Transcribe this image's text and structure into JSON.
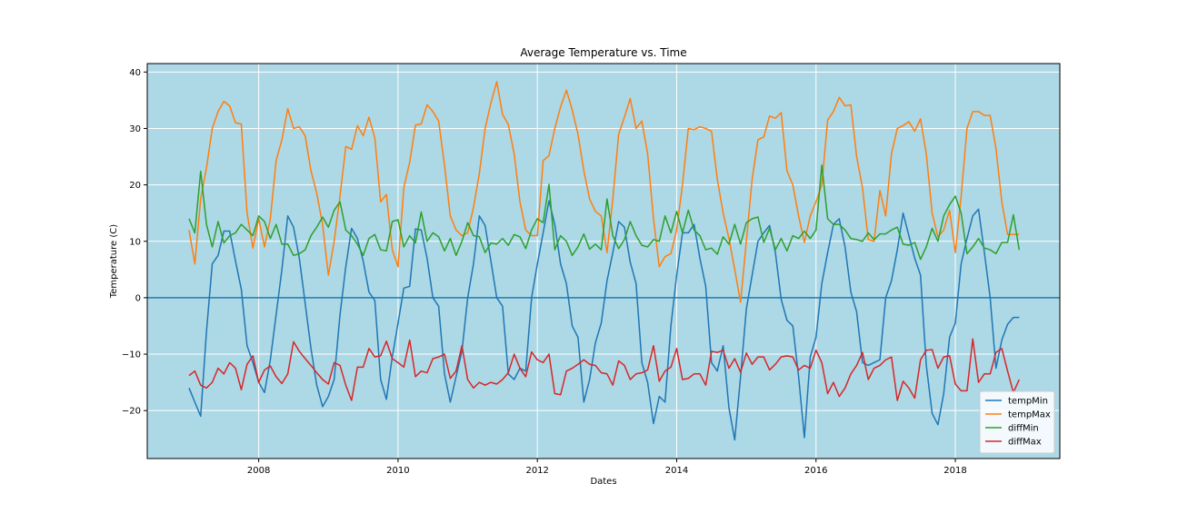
{
  "chart_data": {
    "type": "line",
    "title": "Average Temperature vs. Time",
    "xlabel": "Dates",
    "ylabel": "Temperature (C)",
    "xlim": [
      2006.4,
      2019.5
    ],
    "ylim": [
      -28.5,
      41.5
    ],
    "xticks": [
      2008,
      2010,
      2012,
      2014,
      2016,
      2018
    ],
    "yticks": [
      -20,
      -10,
      0,
      10,
      20,
      30,
      40
    ],
    "grid": true,
    "legend_position": "lower-right",
    "background_color": "#add8e6",
    "hline": {
      "y": 0,
      "color": "#1f77b4"
    },
    "x": [
      2007.0,
      2007.083,
      2007.167,
      2007.25,
      2007.333,
      2007.417,
      2007.5,
      2007.583,
      2007.667,
      2007.75,
      2007.833,
      2007.917,
      2008.0,
      2008.083,
      2008.167,
      2008.25,
      2008.333,
      2008.417,
      2008.5,
      2008.583,
      2008.667,
      2008.75,
      2008.833,
      2008.917,
      2009.0,
      2009.083,
      2009.167,
      2009.25,
      2009.333,
      2009.417,
      2009.5,
      2009.583,
      2009.667,
      2009.75,
      2009.833,
      2009.917,
      2010.0,
      2010.083,
      2010.167,
      2010.25,
      2010.333,
      2010.417,
      2010.5,
      2010.583,
      2010.667,
      2010.75,
      2010.833,
      2010.917,
      2011.0,
      2011.083,
      2011.167,
      2011.25,
      2011.333,
      2011.417,
      2011.5,
      2011.583,
      2011.667,
      2011.75,
      2011.833,
      2011.917,
      2012.0,
      2012.083,
      2012.167,
      2012.25,
      2012.333,
      2012.417,
      2012.5,
      2012.583,
      2012.667,
      2012.75,
      2012.833,
      2012.917,
      2013.0,
      2013.083,
      2013.167,
      2013.25,
      2013.333,
      2013.417,
      2013.5,
      2013.583,
      2013.667,
      2013.75,
      2013.833,
      2013.917,
      2014.0,
      2014.083,
      2014.167,
      2014.25,
      2014.333,
      2014.417,
      2014.5,
      2014.583,
      2014.667,
      2014.75,
      2014.833,
      2014.917,
      2015.0,
      2015.083,
      2015.167,
      2015.25,
      2015.333,
      2015.417,
      2015.5,
      2015.583,
      2015.667,
      2015.75,
      2015.833,
      2015.917,
      2016.0,
      2016.083,
      2016.167,
      2016.25,
      2016.333,
      2016.417,
      2016.5,
      2016.583,
      2016.667,
      2016.75,
      2016.833,
      2016.917,
      2017.0,
      2017.083,
      2017.167,
      2017.25,
      2017.333,
      2017.417,
      2017.5,
      2017.583,
      2017.667,
      2017.75,
      2017.833,
      2017.917,
      2018.0,
      2018.083,
      2018.167,
      2018.25,
      2018.333,
      2018.417,
      2018.5,
      2018.583,
      2018.667,
      2018.75,
      2018.833,
      2018.917
    ],
    "series": [
      {
        "name": "tempMin",
        "color": "#1f77b4",
        "values": [
          -16,
          -18.5,
          -21,
          -6,
          6,
          7.5,
          11.8,
          11.8,
          6.5,
          1.5,
          -8.5,
          -11.5,
          -15,
          -16.8,
          -11,
          -3,
          5,
          14.5,
          12.5,
          7,
          -1,
          -9,
          -15.5,
          -19.3,
          -17.5,
          -14.5,
          -3,
          5.5,
          12.3,
          10.5,
          6.5,
          1,
          -0.5,
          -14.5,
          -18,
          -10.5,
          -4.5,
          1.7,
          2,
          12.2,
          12,
          7,
          0,
          -1.5,
          -13.5,
          -18.5,
          -14,
          -9.5,
          0,
          6,
          14.5,
          12.8,
          6.5,
          0,
          -1.5,
          -13.5,
          -14.5,
          -12.5,
          -13,
          0,
          6,
          11.5,
          17.2,
          13,
          6,
          2.5,
          -5,
          -7,
          -18.5,
          -14.5,
          -8,
          -4.5,
          3,
          8,
          13.5,
          12.5,
          6.3,
          2.5,
          -11.5,
          -15,
          -22.3,
          -17.5,
          -18.5,
          -5,
          4,
          11.5,
          11.5,
          13,
          7,
          2,
          -11.5,
          -13,
          -8.5,
          -19.5,
          -25.2,
          -14,
          -2,
          4,
          10,
          11.5,
          12.8,
          8,
          -0.3,
          -4,
          -5,
          -14,
          -24.8,
          -10.5,
          -7,
          2.5,
          8,
          13,
          14,
          9,
          1,
          -2.5,
          -11.5,
          -12,
          -11.5,
          -11,
          0,
          3,
          8.5,
          15,
          11,
          7,
          4,
          -12,
          -20.5,
          -22.5,
          -17,
          -7,
          -4.5,
          6,
          10.5,
          14.5,
          15.7,
          8,
          0,
          -12.5,
          -7.5,
          -4.7,
          -3.5,
          -3.5
        ]
      },
      {
        "name": "tempMax",
        "color": "#ff7f0e",
        "values": [
          12,
          6,
          17.5,
          23,
          30,
          33,
          34.8,
          34,
          31,
          30.8,
          15,
          8.8,
          14,
          9,
          14,
          24.3,
          28,
          33.5,
          30,
          30.3,
          28.7,
          22.5,
          18.5,
          13,
          4,
          10,
          18,
          26.8,
          26.3,
          30.5,
          28.7,
          32,
          28.3,
          17,
          18.3,
          8.5,
          5.5,
          19.5,
          24,
          30.6,
          30.8,
          34.2,
          33,
          31.3,
          23.5,
          14.5,
          12,
          11,
          11.5,
          16,
          22,
          30,
          34.5,
          38.3,
          32.5,
          30.7,
          25.5,
          17,
          12,
          11,
          11,
          24.3,
          25.2,
          30,
          33.8,
          36.8,
          33.3,
          29,
          22.5,
          17.5,
          15.3,
          14.5,
          8,
          17.5,
          29,
          32,
          35.3,
          30,
          31.3,
          25.5,
          14,
          5.5,
          7.3,
          7.8,
          12,
          20,
          30,
          29.8,
          30.3,
          30,
          29.5,
          21,
          15,
          10.5,
          5,
          -0.8,
          10,
          21,
          28,
          28.5,
          32.2,
          31.8,
          32.8,
          22.5,
          20,
          14.5,
          9.8,
          14.5,
          17,
          20,
          31.5,
          33,
          35.5,
          34,
          34.2,
          25,
          19.5,
          10.3,
          10,
          19,
          14.5,
          25.5,
          30,
          30.5,
          31.2,
          29.5,
          31.7,
          25.5,
          15,
          10.8,
          12,
          15.5,
          8,
          18,
          30,
          33,
          33,
          32.3,
          32.3,
          26.5,
          17,
          11.2,
          11.2,
          11.2
        ]
      },
      {
        "name": "diffMin",
        "color": "#2ca02c",
        "values": [
          14,
          11.5,
          22.4,
          13,
          9,
          13.5,
          9.7,
          11,
          11.5,
          13,
          12,
          11,
          14.5,
          13.5,
          10.5,
          13,
          9.5,
          9.5,
          7.5,
          7.8,
          8.5,
          11,
          12.5,
          14.3,
          12.5,
          15.5,
          17,
          12,
          11,
          9.5,
          7.5,
          10.5,
          11.2,
          8.5,
          8.3,
          13.5,
          13.8,
          9,
          11,
          9.7,
          15.2,
          10,
          11.5,
          10.8,
          8.3,
          10.5,
          7.5,
          10,
          13.3,
          11,
          10.8,
          8,
          9.7,
          9.5,
          10.5,
          9.3,
          11.2,
          10.8,
          8.7,
          12,
          14,
          13.3,
          20.1,
          8.5,
          11,
          10,
          7.5,
          9,
          11.3,
          8.6,
          9.5,
          8.5,
          17.5,
          11,
          8.7,
          10.3,
          13.5,
          11,
          9.3,
          9,
          10.3,
          10,
          14.5,
          11.5,
          15.3,
          11.5,
          15.5,
          12,
          11,
          8.5,
          8.8,
          7.7,
          10.8,
          9.5,
          13,
          9.5,
          13.3,
          14,
          14.3,
          9.8,
          12.3,
          8.5,
          10.5,
          8.3,
          11,
          10.5,
          11.8,
          10.5,
          12,
          23.5,
          14,
          13,
          13,
          12,
          10.5,
          10.3,
          10,
          11.5,
          10.3,
          11.3,
          11.3,
          12,
          12.5,
          9.5,
          9.3,
          9.8,
          6.8,
          9,
          12.3,
          10,
          14.5,
          16.5,
          18,
          15,
          7.8,
          9,
          10.5,
          8.8,
          8.5,
          7.8,
          9.8,
          9.8,
          14.7,
          8.5
        ]
      },
      {
        "name": "diffMax",
        "color": "#d62728",
        "values": [
          -13.8,
          -13,
          -15.5,
          -16,
          -15,
          -12.5,
          -13.5,
          -11.5,
          -12.5,
          -16.3,
          -11.8,
          -10.3,
          -15,
          -12.8,
          -12.1,
          -14,
          -15.2,
          -13.5,
          -7.8,
          -9.5,
          -10.8,
          -12,
          -13.3,
          -14.5,
          -15.3,
          -11.5,
          -12,
          -15.5,
          -18.2,
          -12.3,
          -12.3,
          -9,
          -10.5,
          -10.3,
          -7.7,
          -10.8,
          -11.5,
          -12.3,
          -7.5,
          -14,
          -13,
          -13.3,
          -10.8,
          -10.5,
          -10,
          -14.3,
          -13,
          -8.5,
          -14.5,
          -16,
          -15,
          -15.5,
          -15,
          -15.3,
          -14.5,
          -13.3,
          -10,
          -12.5,
          -14,
          -9.6,
          -11,
          -11.5,
          -10,
          -17,
          -17.2,
          -13,
          -12.5,
          -11.8,
          -11,
          -11.8,
          -12,
          -13.3,
          -13.5,
          -15.5,
          -11.2,
          -12,
          -14.5,
          -13.5,
          -13.3,
          -12.8,
          -8.5,
          -14.8,
          -13,
          -12.3,
          -9,
          -14.5,
          -14.3,
          -13.5,
          -13.5,
          -15.5,
          -9.5,
          -9.7,
          -9.3,
          -12.5,
          -10.8,
          -13.2,
          -9.8,
          -11.8,
          -10.5,
          -10.5,
          -12.8,
          -11.8,
          -10.5,
          -10.3,
          -10.5,
          -12.8,
          -12,
          -12.5,
          -9.3,
          -11.5,
          -17,
          -15,
          -17.5,
          -16,
          -13.5,
          -12,
          -9.7,
          -14.5,
          -12.5,
          -12,
          -11,
          -10.5,
          -18.2,
          -14.8,
          -16,
          -17.8,
          -11,
          -9.3,
          -9.2,
          -12.5,
          -10.5,
          -10.3,
          -15.3,
          -16.5,
          -16.5,
          -7.3,
          -15,
          -13.5,
          -13.5,
          -9.7,
          -9,
          -13,
          -16.8,
          -14.5
        ]
      }
    ]
  }
}
